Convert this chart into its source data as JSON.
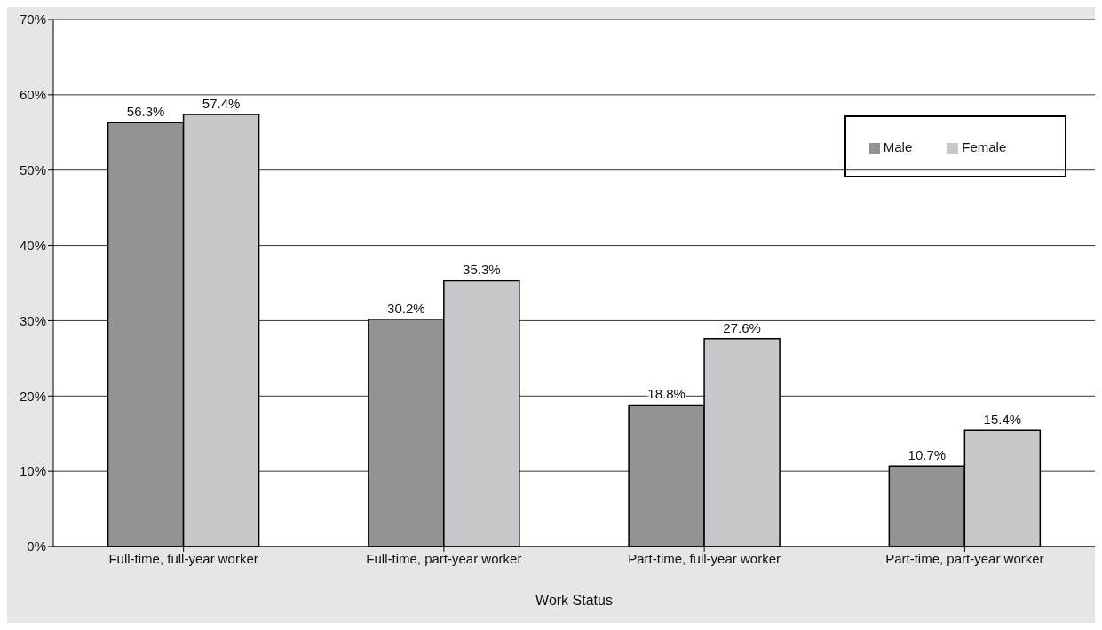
{
  "chart_data": {
    "type": "bar",
    "xlabel": "Work Status",
    "categories": [
      "Full-time, full-year worker",
      "Full-time, part-year worker",
      "Part-time, full-year worker",
      "Part-time, part-year worker"
    ],
    "series": [
      {
        "name": "Male",
        "color": "#939393",
        "values": [
          56.3,
          30.2,
          18.8,
          10.7
        ],
        "value_labels": [
          "56.3%",
          "30.2%",
          "18.8%",
          "10.7%"
        ]
      },
      {
        "name": "Female",
        "color": "#c8c8cc",
        "values": [
          57.4,
          35.3,
          27.6,
          15.4
        ],
        "value_labels": [
          "57.4%",
          "35.3%",
          "27.6%",
          "15.4%"
        ]
      }
    ],
    "ylim": [
      0,
      70
    ],
    "yticks": [
      {
        "value": 0,
        "label": "0%"
      },
      {
        "value": 10,
        "label": "10%"
      },
      {
        "value": 20,
        "label": "20%"
      },
      {
        "value": 30,
        "label": "30%"
      },
      {
        "value": 40,
        "label": "40%"
      },
      {
        "value": 50,
        "label": "50%"
      },
      {
        "value": 60,
        "label": "60%"
      },
      {
        "value": 70,
        "label": "70%"
      }
    ],
    "grid": "y",
    "legend": "top right"
  }
}
